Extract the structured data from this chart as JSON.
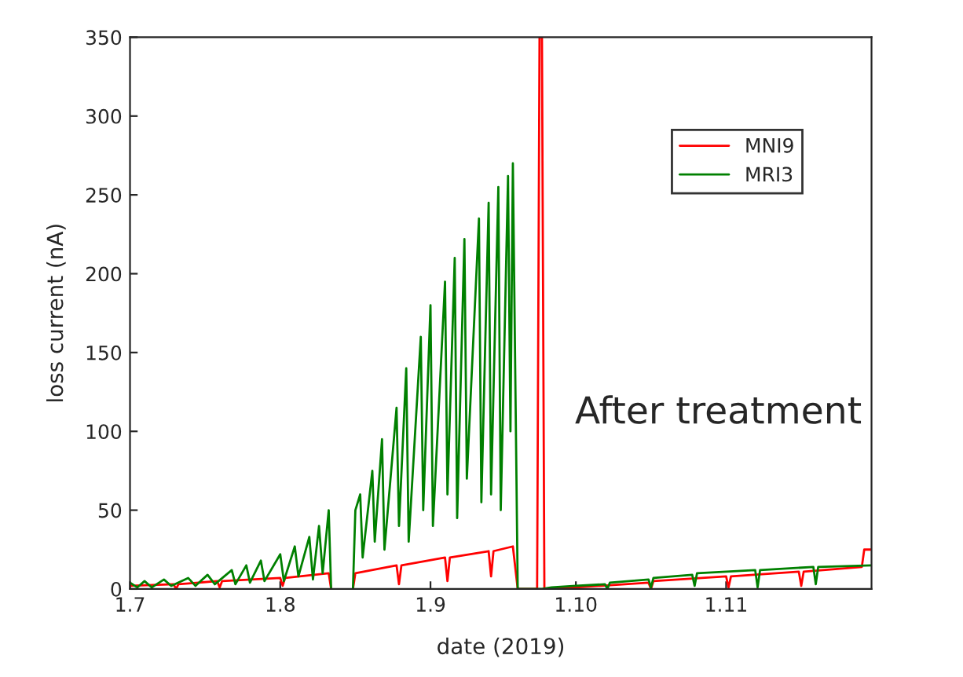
{
  "chart_data": {
    "type": "line",
    "xlabel": "date (2019)",
    "ylabel": "loss current (nA)",
    "xlim": [
      "2019-07-01",
      "2019-12-01"
    ],
    "xticks": [
      {
        "value": "2019-07-01",
        "label": "1.7"
      },
      {
        "value": "2019-08-01",
        "label": "1.8"
      },
      {
        "value": "2019-09-01",
        "label": "1.9"
      },
      {
        "value": "2019-10-01",
        "label": "1.10"
      },
      {
        "value": "2019-11-01",
        "label": "1.11"
      }
    ],
    "ylim": [
      0,
      350
    ],
    "yticks": [
      0,
      50,
      100,
      150,
      200,
      250,
      300,
      350
    ],
    "legend": "top right",
    "annotations": [
      "After treatment"
    ],
    "series": [
      {
        "name": "MNI9",
        "color": "#ff0000",
        "x": [
          "2019-07-01",
          "2019-07-10",
          "2019-07-10T12:00",
          "2019-07-11",
          "2019-07-19",
          "2019-07-19T12:00",
          "2019-07-20",
          "2019-08-01",
          "2019-08-01T12:00",
          "2019-08-02",
          "2019-08-11",
          "2019-08-11T12:00",
          "2019-08-14",
          "2019-08-16",
          "2019-08-16T12:00",
          "2019-08-25",
          "2019-08-25T12:00",
          "2019-08-26",
          "2019-09-04",
          "2019-09-04T12:00",
          "2019-09-05",
          "2019-09-13",
          "2019-09-13T12:00",
          "2019-09-14",
          "2019-09-18",
          "2019-09-19",
          "2019-09-23",
          "2019-09-23T12:00",
          "2019-09-24",
          "2019-09-24T12:00",
          "2019-10-01",
          "2019-10-16",
          "2019-10-16T12:00",
          "2019-10-17",
          "2019-11-01",
          "2019-11-01T12:00",
          "2019-11-02",
          "2019-11-16",
          "2019-11-16T12:00",
          "2019-11-17",
          "2019-11-29",
          "2019-11-29T12:00",
          "2019-12-01"
        ],
        "values": [
          2,
          3,
          0,
          3,
          5,
          1,
          5,
          7,
          2,
          7,
          10,
          0,
          null,
          0,
          10,
          15,
          3,
          15,
          20,
          5,
          20,
          24,
          8,
          24,
          27,
          0,
          0,
          350,
          350,
          0,
          1,
          4,
          0,
          5,
          8,
          1,
          8,
          11,
          2,
          11,
          14,
          25,
          25
        ]
      },
      {
        "name": "MRI3",
        "color": "#008000",
        "x": [
          "2019-07-01",
          "2019-07-02T12:00",
          "2019-07-04",
          "2019-07-05T12:00",
          "2019-07-08",
          "2019-07-09T12:00",
          "2019-07-13",
          "2019-07-14T12:00",
          "2019-07-17",
          "2019-07-18T12:00",
          "2019-07-22",
          "2019-07-22T18:00",
          "2019-07-25",
          "2019-07-25T18:00",
          "2019-07-28",
          "2019-07-28T18:00",
          "2019-08-01",
          "2019-08-01T18:00",
          "2019-08-04",
          "2019-08-04T18:00",
          "2019-08-07",
          "2019-08-07T18:00",
          "2019-08-09",
          "2019-08-09T18:00",
          "2019-08-11",
          "2019-08-11T12:00",
          "2019-08-14",
          "2019-08-16",
          "2019-08-16T12:00",
          "2019-08-17T12:00",
          "2019-08-18",
          "2019-08-20",
          "2019-08-20T12:00",
          "2019-08-22",
          "2019-08-22T12:00",
          "2019-08-25",
          "2019-08-25T12:00",
          "2019-08-27",
          "2019-08-27T12:00",
          "2019-08-30",
          "2019-08-30T12:00",
          "2019-09-01",
          "2019-09-01T12:00",
          "2019-09-04",
          "2019-09-04T12:00",
          "2019-09-06",
          "2019-09-06T12:00",
          "2019-09-08",
          "2019-09-08T12:00",
          "2019-09-11",
          "2019-09-11T12:00",
          "2019-09-13",
          "2019-09-13T12:00",
          "2019-09-15",
          "2019-09-15T12:00",
          "2019-09-17",
          "2019-09-17T12:00",
          "2019-09-18",
          "2019-09-19",
          "2019-09-24",
          "2019-09-26",
          "2019-10-01",
          "2019-10-07",
          "2019-10-07T12:00",
          "2019-10-08",
          "2019-10-16",
          "2019-10-16T12:00",
          "2019-10-17",
          "2019-10-25",
          "2019-10-25T12:00",
          "2019-10-26",
          "2019-11-07",
          "2019-11-07T12:00",
          "2019-11-08",
          "2019-11-19",
          "2019-11-19T12:00",
          "2019-11-20",
          "2019-12-01"
        ],
        "values": [
          4,
          1,
          5,
          1,
          6,
          2,
          7,
          2,
          9,
          3,
          12,
          3,
          15,
          4,
          18,
          5,
          22,
          5,
          27,
          8,
          33,
          6,
          40,
          10,
          50,
          0,
          null,
          0,
          50,
          60,
          20,
          75,
          30,
          95,
          25,
          115,
          40,
          140,
          30,
          160,
          50,
          180,
          40,
          195,
          60,
          210,
          45,
          222,
          70,
          235,
          55,
          245,
          60,
          255,
          50,
          262,
          100,
          270,
          0,
          0,
          1,
          2,
          3,
          0,
          4,
          6,
          1,
          7,
          9,
          2,
          10,
          12,
          1,
          12,
          14,
          3,
          14,
          15
        ]
      }
    ]
  }
}
